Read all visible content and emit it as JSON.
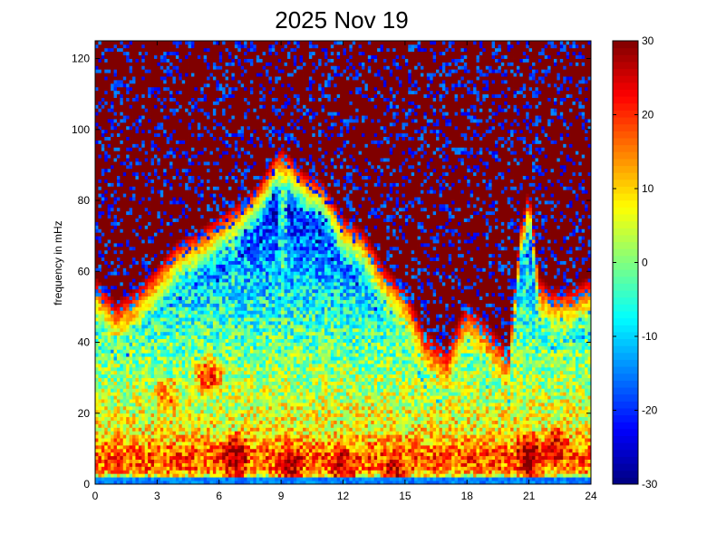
{
  "chart_data": {
    "type": "heatmap",
    "title": "2025 Nov 19",
    "xlabel": "",
    "ylabel": "frequency in mHz",
    "xlim": [
      0,
      24
    ],
    "ylim": [
      0,
      125
    ],
    "x_ticks": [
      "0",
      "3",
      "6",
      "9",
      "12",
      "15",
      "18",
      "21",
      "24"
    ],
    "y_ticks": [
      "0",
      "20",
      "40",
      "60",
      "80",
      "100",
      "120"
    ],
    "colorbar": {
      "range": [
        -30,
        30
      ],
      "ticks": [
        "30",
        "20",
        "10",
        "0",
        "-10",
        "-20",
        "-30"
      ],
      "colormap": "jet"
    },
    "grid": false,
    "n_time_bins": 160,
    "n_freq_bins": 125,
    "background_level": 30,
    "floor_level": -15,
    "noise": 9,
    "spectral_profile": {
      "freq_mhz": [
        0,
        2,
        4,
        8,
        15,
        25,
        35,
        45,
        55,
        65,
        75,
        90,
        110,
        125
      ],
      "level": [
        -28,
        3,
        16,
        18,
        8,
        4,
        0,
        -4,
        -9,
        -14,
        -20,
        -24,
        -24,
        -22
      ]
    },
    "activity_envelope": {
      "time_h": [
        0,
        1,
        2,
        3,
        4,
        5,
        6,
        7,
        8,
        9,
        10,
        11,
        12,
        13,
        14,
        15,
        16,
        17,
        18,
        19,
        20,
        20.6,
        21,
        21.5,
        22,
        23,
        24
      ],
      "edge_mhz": [
        45,
        38,
        42,
        48,
        55,
        58,
        62,
        66,
        72,
        82,
        75,
        72,
        62,
        58,
        48,
        42,
        30,
        25,
        38,
        32,
        25,
        60,
        70,
        45,
        42,
        42,
        45
      ]
    },
    "vertical_streaks": [
      {
        "time_h": 9.1,
        "width_h": 0.25,
        "top_mhz": 125
      },
      {
        "time_h": 20.85,
        "width_h": 0.22,
        "top_mhz": 90
      },
      {
        "time_h": 6.7,
        "width_h": 0.2,
        "top_mhz": 70
      }
    ],
    "hot_patches": [
      {
        "time_h": 6.8,
        "freq_mhz": 8,
        "level": 30
      },
      {
        "time_h": 9.5,
        "freq_mhz": 6,
        "level": 28
      },
      {
        "time_h": 12.0,
        "freq_mhz": 5,
        "level": 27
      },
      {
        "time_h": 14.5,
        "freq_mhz": 5,
        "level": 25
      },
      {
        "time_h": 21.0,
        "freq_mhz": 8,
        "level": 30
      },
      {
        "time_h": 22.3,
        "freq_mhz": 10,
        "level": 26
      },
      {
        "time_h": 5.5,
        "freq_mhz": 30,
        "level": 20
      },
      {
        "time_h": 3.5,
        "freq_mhz": 25,
        "level": 16
      }
    ]
  }
}
